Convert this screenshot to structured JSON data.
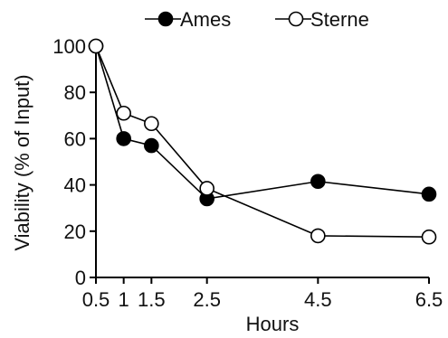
{
  "chart_data": {
    "type": "line",
    "title": "",
    "xlabel": "Hours",
    "ylabel": "Viability (% of Input)",
    "xlim": [
      0.5,
      6.5
    ],
    "ylim": [
      0,
      100
    ],
    "x_ticks": [
      0.5,
      1,
      1.5,
      2.5,
      4.5,
      6.5
    ],
    "x_tick_labels": [
      "0.5",
      "1",
      "1.5",
      "2.5",
      "4.5",
      "6.5"
    ],
    "y_ticks": [
      0,
      20,
      40,
      60,
      80,
      100
    ],
    "y_tick_labels": [
      "0",
      "20",
      "40",
      "60",
      "80",
      "100"
    ],
    "grid": false,
    "legend": {
      "position": "top"
    },
    "series": [
      {
        "name": "Ames",
        "marker": "filled-circle",
        "color": "#000000",
        "x": [
          0.5,
          1,
          1.5,
          2.5,
          4.5,
          6.5
        ],
        "values": [
          100,
          60,
          57,
          34,
          41.5,
          36
        ]
      },
      {
        "name": "Sterne",
        "marker": "open-circle",
        "color": "#000000",
        "x": [
          0.5,
          1,
          1.5,
          2.5,
          4.5,
          6.5
        ],
        "values": [
          100,
          71,
          66.5,
          38.5,
          18,
          17.5
        ]
      }
    ]
  }
}
